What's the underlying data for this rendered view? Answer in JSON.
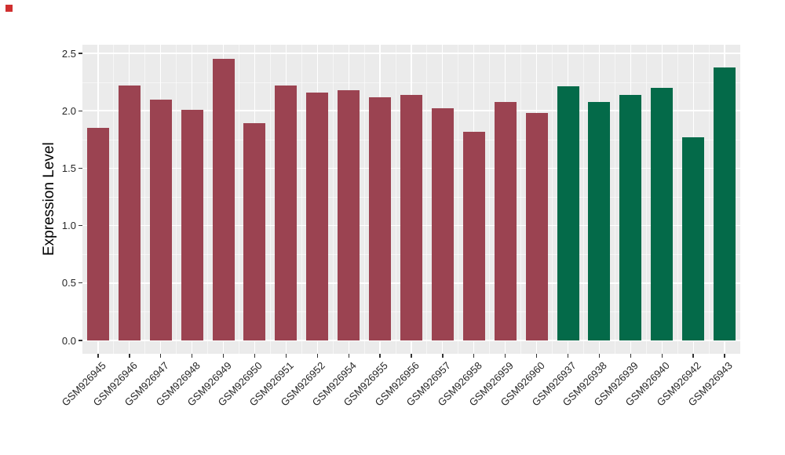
{
  "chart_data": {
    "type": "bar",
    "title": "",
    "xlabel": "",
    "ylabel": "Expression Level",
    "ylim": [
      0,
      2.58
    ],
    "yticks": [
      0,
      0.5,
      1,
      1.5,
      2,
      2.5
    ],
    "ytick_labels": [
      "0.0",
      "0.5",
      "1.0",
      "1.5",
      "2.0",
      "2.5"
    ],
    "grid": true,
    "legend_position": "none",
    "categories": [
      "GSM926945",
      "GSM926946",
      "GSM926947",
      "GSM926948",
      "GSM926949",
      "GSM926950",
      "GSM926951",
      "GSM926952",
      "GSM926954",
      "GSM926955",
      "GSM926956",
      "GSM926957",
      "GSM926958",
      "GSM926959",
      "GSM926960",
      "GSM926937",
      "GSM926938",
      "GSM926939",
      "GSM926940",
      "GSM926942",
      "GSM926943"
    ],
    "values": [
      1.85,
      2.22,
      2.1,
      2.01,
      2.45,
      1.89,
      2.22,
      2.16,
      2.18,
      2.12,
      2.14,
      2.02,
      1.82,
      2.08,
      1.98,
      2.21,
      2.08,
      2.14,
      2.2,
      1.77,
      2.38
    ],
    "bar_groups": [
      0,
      0,
      0,
      0,
      0,
      0,
      0,
      0,
      0,
      0,
      0,
      0,
      0,
      0,
      0,
      1,
      1,
      1,
      1,
      1,
      1
    ],
    "group_colors": [
      "#9B4351",
      "#046A49"
    ],
    "colors": {
      "panel_background": "#EBEBEB",
      "grid": "#FFFFFF",
      "axis_text": "#262626",
      "tick_marks": "#333333",
      "corner_marker": "#D02F2F"
    }
  }
}
